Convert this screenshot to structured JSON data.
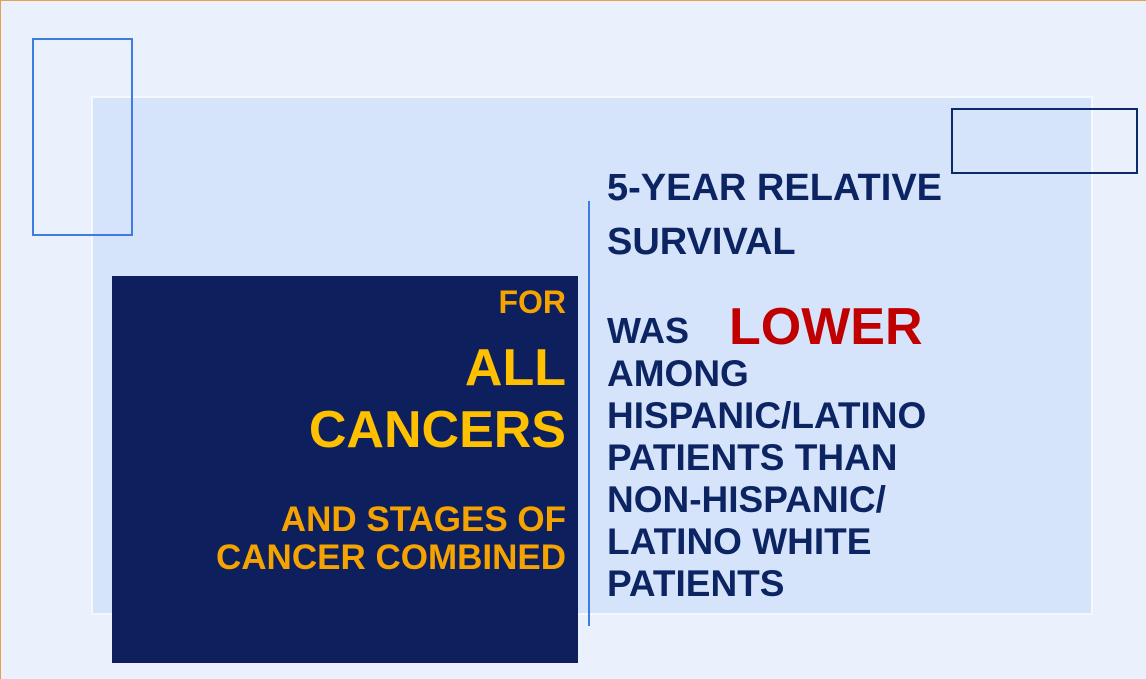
{
  "left": {
    "lines": [
      "FOR",
      "ALL",
      "CANCERS",
      "AND STAGES OF",
      "CANCER COMBINED"
    ]
  },
  "right": {
    "heading": [
      "5-YEAR RELATIVE",
      "SURVIVAL"
    ],
    "was": "WAS",
    "lower": "LOWER",
    "body": [
      "AMONG",
      "HISPANIC/LATINO",
      "PATIENTS THAN",
      "NON-HISPANIC/",
      "LATINO WHITE",
      "PATIENTS"
    ]
  }
}
